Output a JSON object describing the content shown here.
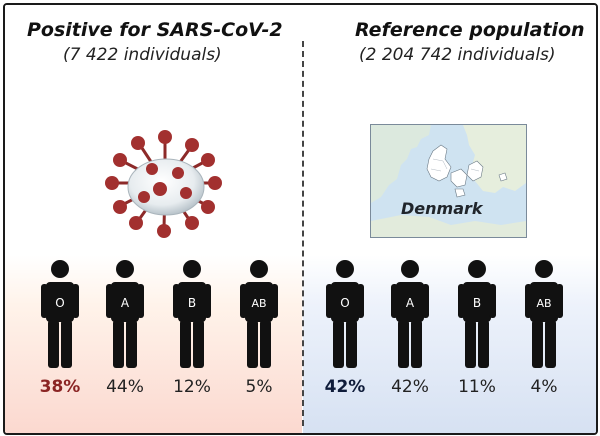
{
  "left": {
    "title": "Positive for SARS-CoV-2",
    "subtitle": "(7 422 individuals)",
    "figures": [
      {
        "type": "O",
        "percent": "38%"
      },
      {
        "type": "A",
        "percent": "44%"
      },
      {
        "type": "B",
        "percent": "12%"
      },
      {
        "type": "AB",
        "percent": "5%"
      }
    ]
  },
  "right": {
    "title": "Reference population",
    "subtitle": "(2 204 742 individuals)",
    "map_label": "Denmark",
    "figures": [
      {
        "type": "O",
        "percent": "42%"
      },
      {
        "type": "A",
        "percent": "42%"
      },
      {
        "type": "B",
        "percent": "11%"
      },
      {
        "type": "AB",
        "percent": "4%"
      }
    ]
  },
  "colors": {
    "virus": "#a2302f",
    "highlight_left": "#8b2524",
    "highlight_right": "#0f1c3a"
  },
  "icons": [
    "virus-icon",
    "person-icon",
    "denmark-map"
  ]
}
